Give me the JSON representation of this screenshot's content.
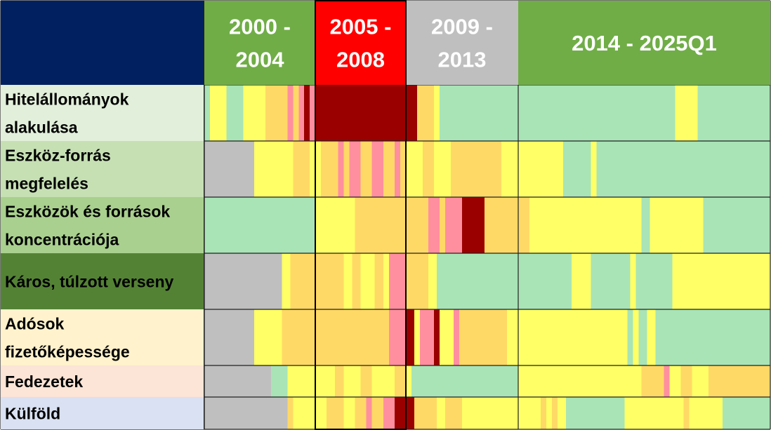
{
  "chart_data": {
    "type": "heatmap",
    "periods": [
      {
        "label": "2000 -\n2004",
        "start": 2000.0,
        "end": 2005.0,
        "color": "#70AD47",
        "text_color": "#FFFFFF"
      },
      {
        "label": "2005 -\n2008",
        "start": 2005.0,
        "end": 2009.0,
        "color": "#FF0000",
        "text_color": "#FFFFFF"
      },
      {
        "label": "2009 -\n2013",
        "start": 2009.0,
        "end": 2014.0,
        "color": "#BFBFBF",
        "text_color": "#FFFFFF"
      },
      {
        "label": "2014 - 2025Q1",
        "start": 2014.0,
        "end": 2025.25,
        "color": "#70AD47",
        "text_color": "#FFFFFF"
      }
    ],
    "header_corner_color": "#002060",
    "highlight_period": {
      "start": 2005.0,
      "end": 2009.0
    },
    "x_range": [
      2000.0,
      2025.25
    ],
    "legend_colors": {
      "grey": "#BFBFBF",
      "green": "#A9E4B6",
      "yellow": "#FFFF66",
      "orange": "#FFD966",
      "pink": "#FF8F9F",
      "darkred": "#9A0000"
    },
    "rows": [
      {
        "label": "Hitelállományok\nalakulása",
        "label_bg": "#E2EFDA",
        "label_color": "#000000",
        "segments": [
          {
            "start": 2000.0,
            "end": 2000.25,
            "level": "green"
          },
          {
            "start": 2000.25,
            "end": 2001.0,
            "level": "yellow"
          },
          {
            "start": 2001.0,
            "end": 2001.75,
            "level": "green"
          },
          {
            "start": 2001.75,
            "end": 2002.75,
            "level": "yellow"
          },
          {
            "start": 2002.75,
            "end": 2003.75,
            "level": "orange"
          },
          {
            "start": 2003.75,
            "end": 2004.0,
            "level": "pink"
          },
          {
            "start": 2004.0,
            "end": 2004.25,
            "level": "orange"
          },
          {
            "start": 2004.25,
            "end": 2004.5,
            "level": "pink"
          },
          {
            "start": 2004.5,
            "end": 2004.75,
            "level": "darkred"
          },
          {
            "start": 2004.75,
            "end": 2005.0,
            "level": "pink"
          },
          {
            "start": 2005.0,
            "end": 2009.0,
            "level": "darkred"
          },
          {
            "start": 2009.0,
            "end": 2009.5,
            "level": "darkred"
          },
          {
            "start": 2009.5,
            "end": 2010.25,
            "level": "orange"
          },
          {
            "start": 2010.25,
            "end": 2010.5,
            "level": "yellow"
          },
          {
            "start": 2010.5,
            "end": 2011.25,
            "level": "green"
          },
          {
            "start": 2011.25,
            "end": 2021.0,
            "level": "green"
          },
          {
            "start": 2021.0,
            "end": 2022.0,
            "level": "yellow"
          },
          {
            "start": 2022.0,
            "end": 2025.25,
            "level": "green"
          }
        ]
      },
      {
        "label": "Eszköz-forrás\nmegfelelés",
        "label_bg": "#C6E0B4",
        "label_color": "#000000",
        "segments": [
          {
            "start": 2000.0,
            "end": 2002.25,
            "level": "grey"
          },
          {
            "start": 2002.25,
            "end": 2004.0,
            "level": "yellow"
          },
          {
            "start": 2004.0,
            "end": 2004.75,
            "level": "orange"
          },
          {
            "start": 2004.75,
            "end": 2005.0,
            "level": "yellow"
          },
          {
            "start": 2005.0,
            "end": 2005.25,
            "level": "yellow"
          },
          {
            "start": 2005.25,
            "end": 2006.0,
            "level": "orange"
          },
          {
            "start": 2006.0,
            "end": 2006.25,
            "level": "pink"
          },
          {
            "start": 2006.25,
            "end": 2006.5,
            "level": "orange"
          },
          {
            "start": 2006.5,
            "end": 2007.0,
            "level": "pink"
          },
          {
            "start": 2007.0,
            "end": 2007.5,
            "level": "orange"
          },
          {
            "start": 2007.5,
            "end": 2008.0,
            "level": "pink"
          },
          {
            "start": 2008.0,
            "end": 2008.5,
            "level": "orange"
          },
          {
            "start": 2008.5,
            "end": 2008.75,
            "level": "pink"
          },
          {
            "start": 2008.75,
            "end": 2009.0,
            "level": "orange"
          },
          {
            "start": 2009.0,
            "end": 2009.75,
            "level": "yellow"
          },
          {
            "start": 2009.75,
            "end": 2010.25,
            "level": "orange"
          },
          {
            "start": 2010.25,
            "end": 2011.0,
            "level": "yellow"
          },
          {
            "start": 2011.0,
            "end": 2013.25,
            "level": "orange"
          },
          {
            "start": 2013.25,
            "end": 2014.0,
            "level": "yellow"
          },
          {
            "start": 2014.0,
            "end": 2016.0,
            "level": "yellow"
          },
          {
            "start": 2016.0,
            "end": 2017.25,
            "level": "green"
          },
          {
            "start": 2017.25,
            "end": 2017.5,
            "level": "yellow"
          },
          {
            "start": 2017.5,
            "end": 2025.25,
            "level": "green"
          }
        ]
      },
      {
        "label": "Eszközök és források\nkoncentrációja",
        "label_bg": "#A9D08E",
        "label_color": "#000000",
        "segments": [
          {
            "start": 2000.0,
            "end": 2004.0,
            "level": "green"
          },
          {
            "start": 2004.0,
            "end": 2005.0,
            "level": "green"
          },
          {
            "start": 2005.0,
            "end": 2006.75,
            "level": "yellow"
          },
          {
            "start": 2006.75,
            "end": 2008.5,
            "level": "orange"
          },
          {
            "start": 2008.5,
            "end": 2009.0,
            "level": "orange"
          },
          {
            "start": 2009.0,
            "end": 2010.0,
            "level": "orange"
          },
          {
            "start": 2010.0,
            "end": 2010.5,
            "level": "pink"
          },
          {
            "start": 2010.5,
            "end": 2010.75,
            "level": "orange"
          },
          {
            "start": 2010.75,
            "end": 2011.25,
            "level": "pink"
          },
          {
            "start": 2011.25,
            "end": 2011.5,
            "level": "pink"
          },
          {
            "start": 2011.5,
            "end": 2012.5,
            "level": "darkred"
          },
          {
            "start": 2012.5,
            "end": 2014.0,
            "level": "orange"
          },
          {
            "start": 2014.0,
            "end": 2014.5,
            "level": "orange"
          },
          {
            "start": 2014.5,
            "end": 2019.5,
            "level": "yellow"
          },
          {
            "start": 2019.5,
            "end": 2019.875,
            "level": "green"
          },
          {
            "start": 2019.875,
            "end": 2022.0,
            "level": "yellow"
          },
          {
            "start": 2022.0,
            "end": 2022.25,
            "level": "yellow"
          },
          {
            "start": 2022.25,
            "end": 2025.25,
            "level": "green"
          }
        ]
      },
      {
        "label": "Káros, túlzott verseny",
        "label_bg": "#548235",
        "label_color": "#000000",
        "segments": [
          {
            "start": 2000.0,
            "end": 2003.5,
            "level": "grey"
          },
          {
            "start": 2003.5,
            "end": 2003.875,
            "level": "yellow"
          },
          {
            "start": 2003.875,
            "end": 2005.0,
            "level": "orange"
          },
          {
            "start": 2005.0,
            "end": 2006.25,
            "level": "orange"
          },
          {
            "start": 2006.25,
            "end": 2006.625,
            "level": "yellow"
          },
          {
            "start": 2006.625,
            "end": 2007.0,
            "level": "orange"
          },
          {
            "start": 2007.0,
            "end": 2007.625,
            "level": "yellow"
          },
          {
            "start": 2007.625,
            "end": 2008.0,
            "level": "orange"
          },
          {
            "start": 2008.0,
            "end": 2008.25,
            "level": "yellow"
          },
          {
            "start": 2008.25,
            "end": 2009.0,
            "level": "pink"
          },
          {
            "start": 2009.0,
            "end": 2010.0,
            "level": "orange"
          },
          {
            "start": 2010.0,
            "end": 2010.375,
            "level": "yellow"
          },
          {
            "start": 2010.375,
            "end": 2014.0,
            "level": "green"
          },
          {
            "start": 2014.0,
            "end": 2016.375,
            "level": "green"
          },
          {
            "start": 2016.375,
            "end": 2017.25,
            "level": "yellow"
          },
          {
            "start": 2017.25,
            "end": 2019.0,
            "level": "green"
          },
          {
            "start": 2019.0,
            "end": 2019.25,
            "level": "yellow"
          },
          {
            "start": 2019.25,
            "end": 2020.875,
            "level": "green"
          },
          {
            "start": 2020.875,
            "end": 2025.25,
            "level": "yellow"
          }
        ]
      },
      {
        "label": "Adósok\nfizetőképessége",
        "label_bg": "#FFF2CC",
        "label_color": "#000000",
        "segments": [
          {
            "start": 2000.0,
            "end": 2002.25,
            "level": "grey"
          },
          {
            "start": 2002.25,
            "end": 2003.5,
            "level": "yellow"
          },
          {
            "start": 2003.5,
            "end": 2004.0,
            "level": "orange"
          },
          {
            "start": 2004.0,
            "end": 2005.0,
            "level": "orange"
          },
          {
            "start": 2005.0,
            "end": 2008.25,
            "level": "orange"
          },
          {
            "start": 2008.25,
            "end": 2009.0,
            "level": "pink"
          },
          {
            "start": 2009.0,
            "end": 2009.375,
            "level": "darkred"
          },
          {
            "start": 2009.375,
            "end": 2009.625,
            "level": "yellow"
          },
          {
            "start": 2009.625,
            "end": 2010.25,
            "level": "pink"
          },
          {
            "start": 2010.25,
            "end": 2010.5,
            "level": "darkred"
          },
          {
            "start": 2010.5,
            "end": 2011.125,
            "level": "yellow"
          },
          {
            "start": 2011.125,
            "end": 2011.375,
            "level": "pink"
          },
          {
            "start": 2011.375,
            "end": 2013.5,
            "level": "orange"
          },
          {
            "start": 2013.5,
            "end": 2014.0,
            "level": "yellow"
          },
          {
            "start": 2014.0,
            "end": 2018.875,
            "level": "yellow"
          },
          {
            "start": 2018.875,
            "end": 2019.125,
            "level": "green"
          },
          {
            "start": 2019.125,
            "end": 2019.375,
            "level": "yellow"
          },
          {
            "start": 2019.375,
            "end": 2019.75,
            "level": "green"
          },
          {
            "start": 2019.75,
            "end": 2020.125,
            "level": "yellow"
          },
          {
            "start": 2020.125,
            "end": 2025.25,
            "level": "green"
          }
        ]
      },
      {
        "label": "Fedezetek",
        "label_bg": "#FCE4D6",
        "label_color": "#000000",
        "segments": [
          {
            "start": 2000.0,
            "end": 2003.0,
            "level": "grey"
          },
          {
            "start": 2003.0,
            "end": 2003.75,
            "level": "green"
          },
          {
            "start": 2003.75,
            "end": 2004.0,
            "level": "yellow"
          },
          {
            "start": 2004.0,
            "end": 2005.0,
            "level": "yellow"
          },
          {
            "start": 2005.0,
            "end": 2005.875,
            "level": "yellow"
          },
          {
            "start": 2005.875,
            "end": 2006.25,
            "level": "orange"
          },
          {
            "start": 2006.25,
            "end": 2007.0,
            "level": "yellow"
          },
          {
            "start": 2007.0,
            "end": 2007.5,
            "level": "orange"
          },
          {
            "start": 2007.5,
            "end": 2008.5,
            "level": "yellow"
          },
          {
            "start": 2008.5,
            "end": 2009.0,
            "level": "orange"
          },
          {
            "start": 2009.0,
            "end": 2009.25,
            "level": "yellow"
          },
          {
            "start": 2009.25,
            "end": 2014.0,
            "level": "green"
          },
          {
            "start": 2014.0,
            "end": 2019.0,
            "level": "yellow"
          },
          {
            "start": 2019.0,
            "end": 2019.5,
            "level": "yellow"
          },
          {
            "start": 2019.5,
            "end": 2020.5,
            "level": "orange"
          },
          {
            "start": 2020.5,
            "end": 2020.75,
            "level": "pink"
          },
          {
            "start": 2020.75,
            "end": 2021.25,
            "level": "yellow"
          },
          {
            "start": 2021.25,
            "end": 2021.75,
            "level": "orange"
          },
          {
            "start": 2021.75,
            "end": 2022.25,
            "level": "yellow"
          },
          {
            "start": 2022.25,
            "end": 2022.5,
            "level": "yellow"
          },
          {
            "start": 2022.5,
            "end": 2025.25,
            "level": "orange"
          }
        ]
      },
      {
        "label": "Külföld",
        "label_bg": "#D9E1F2",
        "label_color": "#000000",
        "segments": [
          {
            "start": 2000.0,
            "end": 2003.75,
            "level": "grey"
          },
          {
            "start": 2003.75,
            "end": 2004.0,
            "level": "orange"
          },
          {
            "start": 2004.0,
            "end": 2005.0,
            "level": "yellow"
          },
          {
            "start": 2005.0,
            "end": 2005.5,
            "level": "yellow"
          },
          {
            "start": 2005.5,
            "end": 2006.25,
            "level": "orange"
          },
          {
            "start": 2006.25,
            "end": 2006.75,
            "level": "yellow"
          },
          {
            "start": 2006.75,
            "end": 2007.25,
            "level": "orange"
          },
          {
            "start": 2007.25,
            "end": 2007.5,
            "level": "pink"
          },
          {
            "start": 2007.5,
            "end": 2008.0,
            "level": "orange"
          },
          {
            "start": 2008.0,
            "end": 2008.5,
            "level": "pink"
          },
          {
            "start": 2008.5,
            "end": 2009.0,
            "level": "darkred"
          },
          {
            "start": 2009.0,
            "end": 2009.375,
            "level": "darkred"
          },
          {
            "start": 2009.375,
            "end": 2010.375,
            "level": "orange"
          },
          {
            "start": 2010.375,
            "end": 2010.75,
            "level": "yellow"
          },
          {
            "start": 2010.75,
            "end": 2011.5,
            "level": "orange"
          },
          {
            "start": 2011.5,
            "end": 2014.0,
            "level": "yellow"
          },
          {
            "start": 2014.0,
            "end": 2015.0,
            "level": "yellow"
          },
          {
            "start": 2015.0,
            "end": 2015.25,
            "level": "orange"
          },
          {
            "start": 2015.25,
            "end": 2015.5,
            "level": "yellow"
          },
          {
            "start": 2015.5,
            "end": 2015.75,
            "level": "orange"
          },
          {
            "start": 2015.75,
            "end": 2016.125,
            "level": "yellow"
          },
          {
            "start": 2016.125,
            "end": 2018.75,
            "level": "green"
          },
          {
            "start": 2018.75,
            "end": 2021.375,
            "level": "yellow"
          },
          {
            "start": 2021.375,
            "end": 2021.625,
            "level": "orange"
          },
          {
            "start": 2021.625,
            "end": 2023.125,
            "level": "yellow"
          },
          {
            "start": 2023.125,
            "end": 2025.25,
            "level": "green"
          }
        ]
      }
    ]
  }
}
